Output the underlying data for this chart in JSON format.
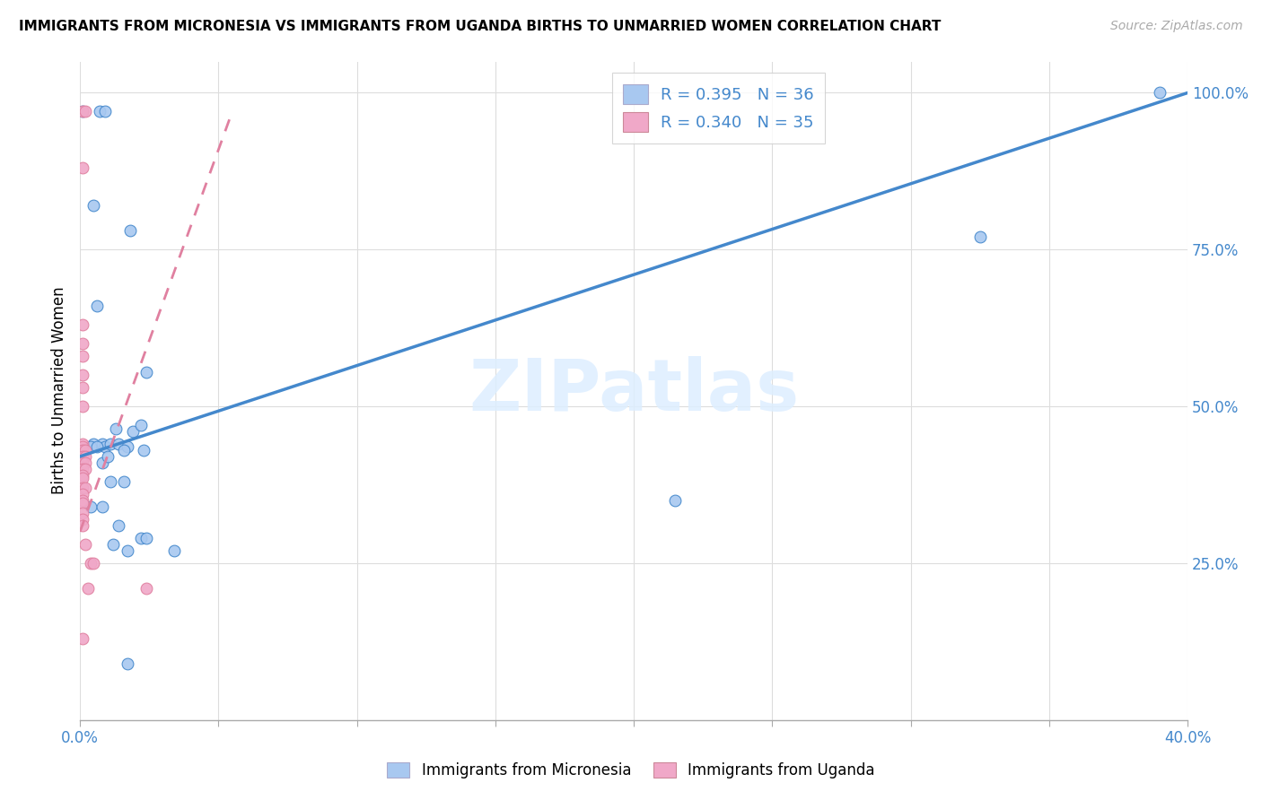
{
  "title": "IMMIGRANTS FROM MICRONESIA VS IMMIGRANTS FROM UGANDA BIRTHS TO UNMARRIED WOMEN CORRELATION CHART",
  "source": "Source: ZipAtlas.com",
  "ylabel": "Births to Unmarried Women",
  "legend1_label": "R = 0.395   N = 36",
  "legend2_label": "R = 0.340   N = 35",
  "legend_xlabel1": "Immigrants from Micronesia",
  "legend_xlabel2": "Immigrants from Uganda",
  "watermark": "ZIPatlas",
  "blue_color": "#a8c8f0",
  "pink_color": "#f0a8c8",
  "blue_line_color": "#4488cc",
  "pink_line_color": "#e080a0",
  "blue_scatter_x": [
    0.1,
    0.7,
    0.9,
    0.5,
    1.8,
    0.6,
    2.4,
    0.5,
    0.8,
    0.9,
    1.1,
    0.4,
    0.6,
    1.4,
    1.7,
    1.3,
    1.9,
    2.2,
    1.6,
    2.3,
    1.1,
    1.6,
    2.2,
    2.4,
    1.2,
    1.7,
    3.4,
    0.4,
    0.8,
    1.4,
    21.5,
    32.5,
    39.0,
    1.7,
    0.8,
    1.0
  ],
  "blue_scatter_y": [
    0.97,
    0.97,
    0.97,
    0.82,
    0.78,
    0.66,
    0.555,
    0.44,
    0.44,
    0.435,
    0.44,
    0.435,
    0.435,
    0.44,
    0.435,
    0.465,
    0.46,
    0.47,
    0.43,
    0.43,
    0.38,
    0.38,
    0.29,
    0.29,
    0.28,
    0.27,
    0.27,
    0.34,
    0.34,
    0.31,
    0.35,
    0.77,
    1.0,
    0.09,
    0.41,
    0.42
  ],
  "pink_scatter_x": [
    0.1,
    0.1,
    0.2,
    0.1,
    0.1,
    0.1,
    0.1,
    0.1,
    0.1,
    0.1,
    0.1,
    0.1,
    0.2,
    0.1,
    0.2,
    0.1,
    0.2,
    0.1,
    0.2,
    0.1,
    0.1,
    0.1,
    0.2,
    0.1,
    0.1,
    0.1,
    0.1,
    0.1,
    0.1,
    0.2,
    0.4,
    0.5,
    0.3,
    2.4,
    0.1
  ],
  "pink_scatter_y": [
    0.88,
    0.97,
    0.97,
    0.63,
    0.6,
    0.58,
    0.55,
    0.53,
    0.5,
    0.44,
    0.435,
    0.43,
    0.43,
    0.42,
    0.42,
    0.41,
    0.41,
    0.4,
    0.4,
    0.39,
    0.385,
    0.37,
    0.37,
    0.36,
    0.35,
    0.345,
    0.33,
    0.32,
    0.31,
    0.28,
    0.25,
    0.25,
    0.21,
    0.21,
    0.13
  ],
  "blue_line_x": [
    0.0,
    40.0
  ],
  "blue_line_y": [
    0.42,
    1.0
  ],
  "pink_line_x": [
    0.0,
    5.5
  ],
  "pink_line_y": [
    0.3,
    0.97
  ],
  "xlim": [
    0.0,
    40.0
  ],
  "ylim": [
    0.0,
    1.05
  ],
  "xticks": [
    0.0,
    5.0,
    10.0,
    15.0,
    20.0,
    25.0,
    30.0,
    35.0,
    40.0
  ],
  "xtick_labels": [
    "0.0%",
    "",
    "",
    "",
    "",
    "",
    "",
    "",
    "40.0%"
  ],
  "yticks": [
    0.25,
    0.5,
    0.75,
    1.0
  ],
  "ytick_labels": [
    "25.0%",
    "50.0%",
    "75.0%",
    "100.0%"
  ]
}
